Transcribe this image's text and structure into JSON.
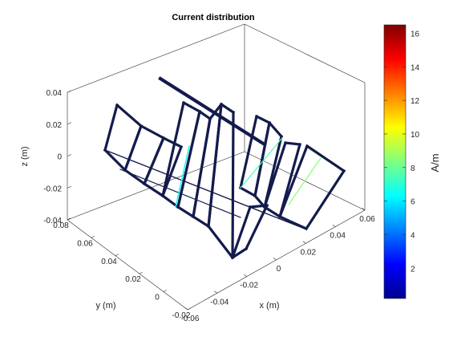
{
  "chart_data": {
    "type": "3d-wireframe",
    "title": "Current distribution",
    "xlabel": "x (m)",
    "ylabel": "y (m)",
    "zlabel": "z (m)",
    "xlim": [
      -0.06,
      0.06
    ],
    "ylim": [
      -0.02,
      0.08
    ],
    "zlim": [
      -0.04,
      0.04
    ],
    "x_ticks": [
      "-0.06",
      "-0.04",
      "-0.02",
      "0",
      "0.02",
      "0.04",
      "0.06"
    ],
    "y_ticks": [
      "-0.02",
      "0",
      "0.02",
      "0.04",
      "0.06",
      "0.08"
    ],
    "z_ticks": [
      "-0.04",
      "-0.02",
      "0",
      "0.02",
      "0.04"
    ],
    "colorbar": {
      "label": "A/m",
      "range": [
        0.2,
        16.5
      ],
      "ticks": [
        "2",
        "4",
        "6",
        "8",
        "10",
        "12",
        "14",
        "16"
      ],
      "colormap": "jet"
    },
    "grid": false,
    "feed_current": 16.5,
    "typical_current": 0.5
  }
}
